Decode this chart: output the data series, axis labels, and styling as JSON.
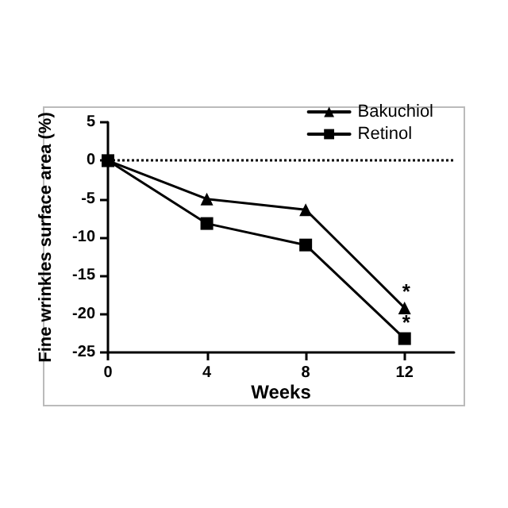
{
  "chart_data": {
    "type": "line",
    "xlabel": "Weeks",
    "ylabel": "Fine wrinkles surface area (%)",
    "x": [
      0,
      4,
      8,
      12
    ],
    "series": [
      {
        "name": "Bakuchiol",
        "color": "#000000",
        "marker": "triangle",
        "values": [
          0,
          -5.0,
          -6.4,
          -19.2
        ]
      },
      {
        "name": "Retinol",
        "color": "#000000",
        "marker": "square",
        "values": [
          0,
          -8.2,
          -11.0,
          -23.2
        ]
      }
    ],
    "xlim": [
      0,
      14
    ],
    "xticks": [
      0,
      4,
      8,
      12
    ],
    "ylim": [
      -25,
      5
    ],
    "yticks": [
      5,
      0,
      -5,
      -10,
      -15,
      -20,
      -25
    ],
    "ref_lines": [
      {
        "axis": "y",
        "value": 0,
        "line_style": "dotted",
        "color": "#000000"
      }
    ],
    "annotations": [
      {
        "text": "*",
        "x": 12,
        "y": -19.2
      },
      {
        "text": "*",
        "x": 12,
        "y": -23.2
      }
    ],
    "legend": "top right",
    "grid": false,
    "line_style": "solid"
  }
}
